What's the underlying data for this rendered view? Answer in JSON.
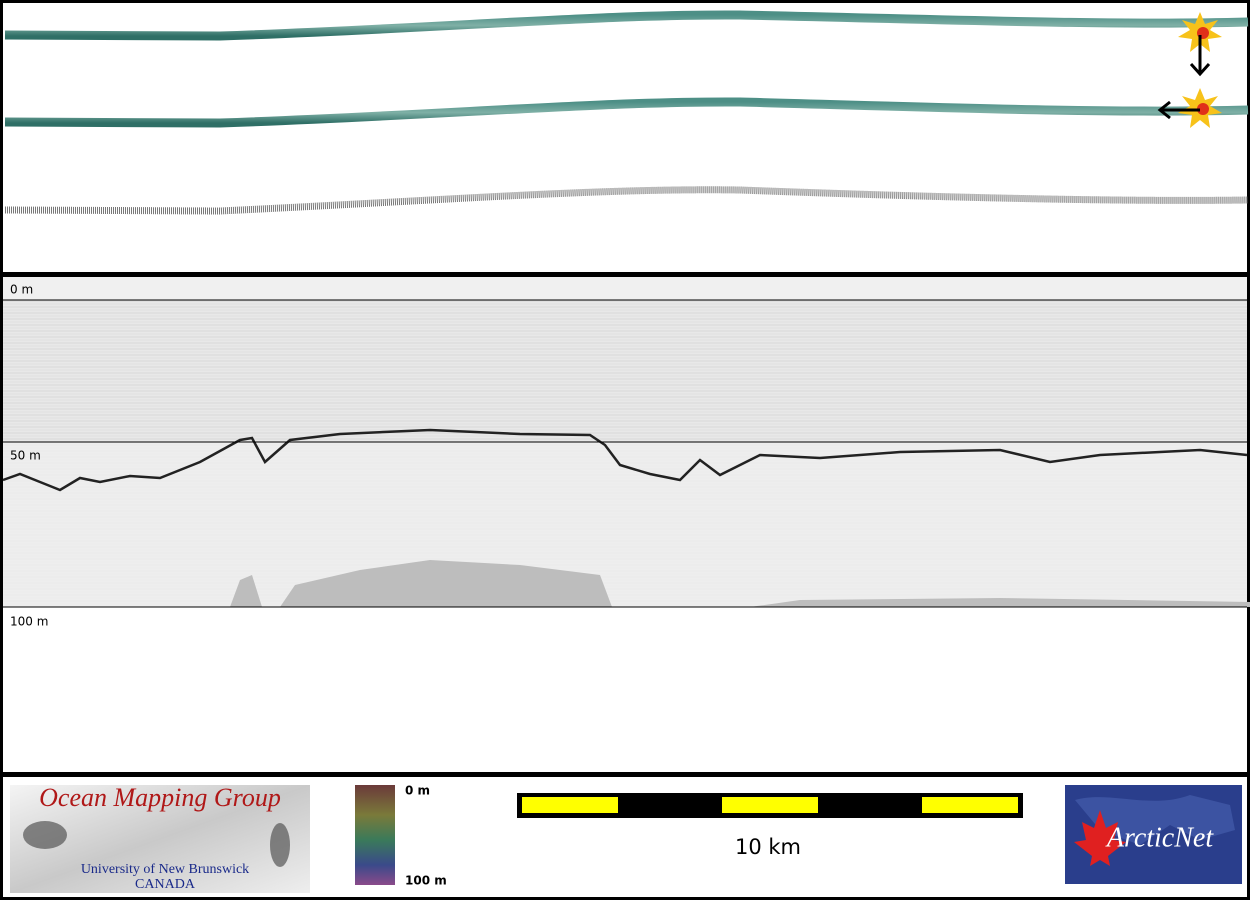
{
  "profile": {
    "depth_labels": [
      "0 m",
      "50 m",
      "100 m"
    ]
  },
  "logo_left": {
    "title": "Ocean Mapping Group",
    "line1": "University of New Brunswick",
    "line2": "CANADA"
  },
  "color_bar": {
    "top_label": "0 m",
    "bottom_label": "100 m"
  },
  "scale_bar": {
    "label": "10 km"
  },
  "logo_right": {
    "title": "ArcticNet"
  }
}
